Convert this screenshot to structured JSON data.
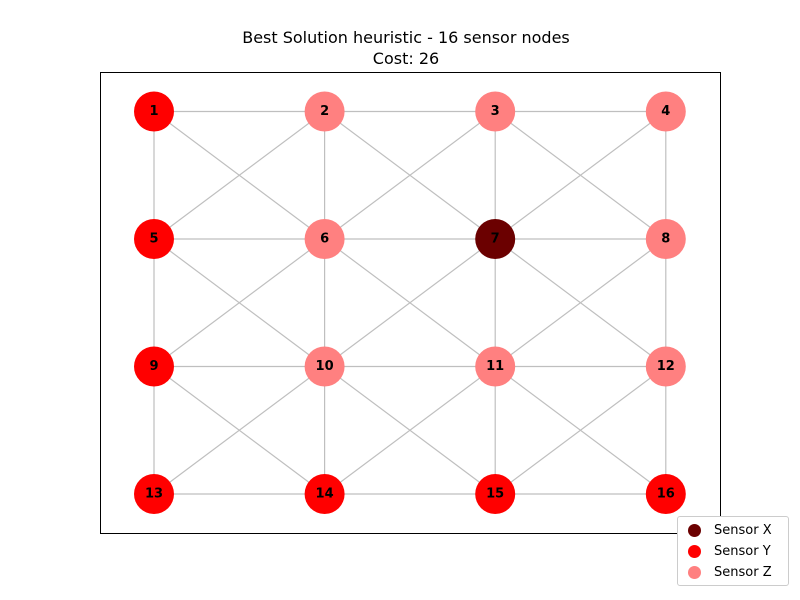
{
  "title": {
    "line1": "Best Solution heuristic - 16 sensor nodes",
    "line2": "Cost: 26"
  },
  "colors": {
    "sensor_x": "#6b0000",
    "sensor_y": "#ff0000",
    "sensor_z": "#ff8080",
    "edge": "#bfbfbf"
  },
  "legend": [
    {
      "type": "sensor_x",
      "label": "Sensor X"
    },
    {
      "type": "sensor_y",
      "label": "Sensor Y"
    },
    {
      "type": "sensor_z",
      "label": "Sensor Z"
    }
  ],
  "grid": {
    "rows": 4,
    "cols": 4
  },
  "nodes": [
    {
      "id": "1",
      "type": "sensor_y"
    },
    {
      "id": "2",
      "type": "sensor_z"
    },
    {
      "id": "3",
      "type": "sensor_z"
    },
    {
      "id": "4",
      "type": "sensor_z"
    },
    {
      "id": "5",
      "type": "sensor_y"
    },
    {
      "id": "6",
      "type": "sensor_z"
    },
    {
      "id": "7",
      "type": "sensor_x"
    },
    {
      "id": "8",
      "type": "sensor_z"
    },
    {
      "id": "9",
      "type": "sensor_y"
    },
    {
      "id": "10",
      "type": "sensor_z"
    },
    {
      "id": "11",
      "type": "sensor_z"
    },
    {
      "id": "12",
      "type": "sensor_z"
    },
    {
      "id": "13",
      "type": "sensor_y"
    },
    {
      "id": "14",
      "type": "sensor_y"
    },
    {
      "id": "15",
      "type": "sensor_y"
    },
    {
      "id": "16",
      "type": "sensor_y"
    }
  ],
  "edges": [
    [
      "1",
      "2"
    ],
    [
      "2",
      "3"
    ],
    [
      "3",
      "4"
    ],
    [
      "5",
      "6"
    ],
    [
      "6",
      "7"
    ],
    [
      "7",
      "8"
    ],
    [
      "9",
      "10"
    ],
    [
      "10",
      "11"
    ],
    [
      "11",
      "12"
    ],
    [
      "13",
      "14"
    ],
    [
      "14",
      "15"
    ],
    [
      "15",
      "16"
    ],
    [
      "1",
      "5"
    ],
    [
      "5",
      "9"
    ],
    [
      "9",
      "13"
    ],
    [
      "2",
      "6"
    ],
    [
      "6",
      "10"
    ],
    [
      "10",
      "14"
    ],
    [
      "3",
      "7"
    ],
    [
      "7",
      "11"
    ],
    [
      "11",
      "15"
    ],
    [
      "4",
      "8"
    ],
    [
      "8",
      "12"
    ],
    [
      "12",
      "16"
    ],
    [
      "1",
      "6"
    ],
    [
      "2",
      "5"
    ],
    [
      "2",
      "7"
    ],
    [
      "3",
      "6"
    ],
    [
      "3",
      "8"
    ],
    [
      "4",
      "7"
    ],
    [
      "5",
      "10"
    ],
    [
      "6",
      "9"
    ],
    [
      "6",
      "11"
    ],
    [
      "7",
      "10"
    ],
    [
      "7",
      "12"
    ],
    [
      "8",
      "11"
    ],
    [
      "9",
      "14"
    ],
    [
      "10",
      "13"
    ],
    [
      "10",
      "15"
    ],
    [
      "11",
      "14"
    ],
    [
      "11",
      "16"
    ],
    [
      "12",
      "15"
    ]
  ]
}
